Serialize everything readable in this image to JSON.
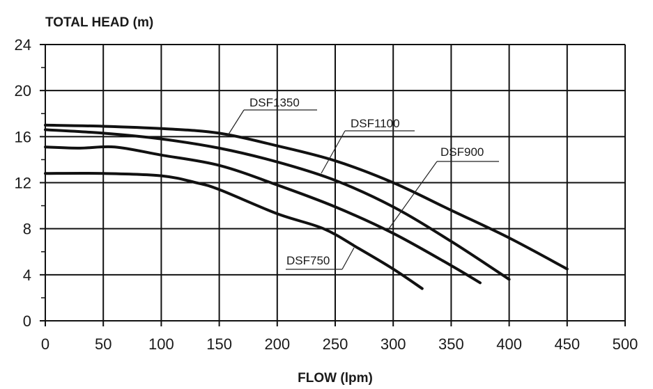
{
  "chart_data": {
    "type": "line",
    "title": "",
    "ylabel": "TOTAL HEAD (m)",
    "xlabel": "FLOW (lpm)",
    "xlim": [
      0,
      500
    ],
    "ylim": [
      0,
      24
    ],
    "xticks": [
      0,
      50,
      100,
      150,
      200,
      250,
      300,
      350,
      400,
      450,
      500
    ],
    "yticks": [
      0,
      4,
      8,
      12,
      16,
      20,
      24
    ],
    "grid": true,
    "line_color": "#111111",
    "series": [
      {
        "name": "DSF1350",
        "x": [
          0,
          50,
          100,
          150,
          200,
          250,
          300,
          350,
          400,
          450
        ],
        "y": [
          17.0,
          16.9,
          16.7,
          16.3,
          15.2,
          13.9,
          12.0,
          9.6,
          7.2,
          4.5
        ]
      },
      {
        "name": "DSF1100",
        "x": [
          0,
          50,
          100,
          150,
          200,
          250,
          300,
          350,
          400
        ],
        "y": [
          16.6,
          16.3,
          15.8,
          15.0,
          13.8,
          12.2,
          9.9,
          6.9,
          3.6
        ]
      },
      {
        "name": "DSF900",
        "x": [
          0,
          30,
          60,
          100,
          150,
          200,
          250,
          300,
          350,
          375
        ],
        "y": [
          15.1,
          15.0,
          15.1,
          14.4,
          13.5,
          11.8,
          9.9,
          7.6,
          4.8,
          3.3
        ]
      },
      {
        "name": "DSF750",
        "x": [
          0,
          50,
          100,
          130,
          150,
          200,
          240,
          270,
          300,
          325
        ],
        "y": [
          12.8,
          12.8,
          12.6,
          12.0,
          11.4,
          9.3,
          8.0,
          6.3,
          4.5,
          2.8
        ]
      }
    ]
  }
}
